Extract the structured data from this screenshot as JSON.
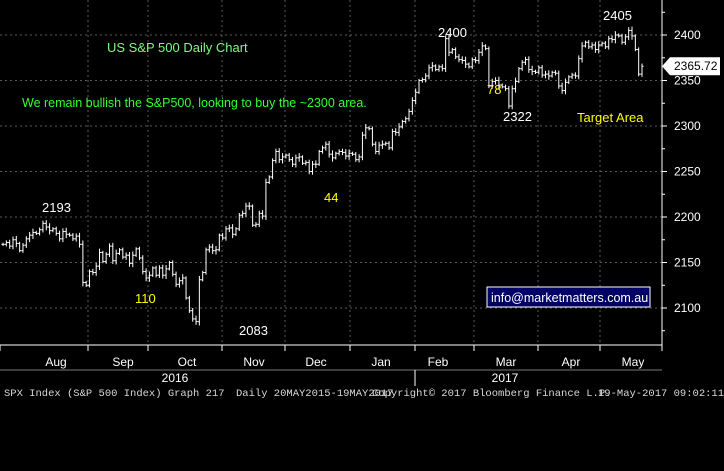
{
  "chart_data": {
    "type": "line",
    "title": "US S&P 500 Daily Chart",
    "subtitle": "We remain bullish the S&P500, looking to buy the ~2300 area.",
    "ylim": [
      2075,
      2425
    ],
    "y_ticks": [
      2100,
      2150,
      2200,
      2250,
      2300,
      2350,
      2400
    ],
    "month_labels": [
      "Aug",
      "Sep",
      "Oct",
      "Nov",
      "Dec",
      "Jan",
      "Feb",
      "Mar",
      "Apr",
      "May"
    ],
    "year_labels": [
      "2016",
      "2017"
    ],
    "last_price": "2365.72",
    "website": "info@marketmatters.com.au",
    "annotations": [
      {
        "text": "2193",
        "color": "#ffffff"
      },
      {
        "text": "110",
        "color": "#ffff00"
      },
      {
        "text": "2083",
        "color": "#ffffff"
      },
      {
        "text": "44",
        "color": "#ffff00"
      },
      {
        "text": "2400",
        "color": "#ffffff"
      },
      {
        "text": "78",
        "color": "#ffff00"
      },
      {
        "text": "2322",
        "color": "#ffffff"
      },
      {
        "text": "2405",
        "color": "#ffffff"
      },
      {
        "text": "Target Area",
        "color": "#ffff00"
      }
    ],
    "series": [
      {
        "values": [
          2170,
          2172,
          2168,
          2175,
          2171,
          2163,
          2169,
          2176,
          2180,
          2183,
          2182,
          2186,
          2193,
          2189,
          2185,
          2187,
          2182,
          2176,
          2184,
          2181,
          2180,
          2176,
          2179,
          2170,
          2128,
          2125,
          2140,
          2139,
          2146,
          2161,
          2151,
          2159,
          2168,
          2152,
          2160,
          2164,
          2156,
          2158,
          2149,
          2158,
          2165,
          2155,
          2140,
          2133,
          2136,
          2144,
          2136,
          2144,
          2136,
          2143,
          2150,
          2137,
          2126,
          2130,
          2133,
          2111,
          2097,
          2088,
          2085,
          2131,
          2139,
          2164,
          2167,
          2163,
          2164,
          2180,
          2177,
          2187,
          2188,
          2181,
          2187,
          2202,
          2204,
          2212,
          2212,
          2191,
          2192,
          2204,
          2201,
          2238,
          2244,
          2262,
          2272,
          2263,
          2266,
          2268,
          2263,
          2258,
          2265,
          2266,
          2259,
          2260,
          2250,
          2258,
          2258,
          2272,
          2276,
          2280,
          2269,
          2265,
          2270,
          2272,
          2271,
          2267,
          2270,
          2269,
          2263,
          2266,
          2290,
          2298,
          2297,
          2280,
          2272,
          2279,
          2280,
          2281,
          2276,
          2294,
          2293,
          2299,
          2305,
          2308,
          2316,
          2328,
          2337,
          2350,
          2351,
          2355,
          2364,
          2366,
          2362,
          2365,
          2363,
          2396,
          2381,
          2384,
          2376,
          2373,
          2372,
          2368,
          2365,
          2373,
          2372,
          2381,
          2388,
          2385,
          2344,
          2349,
          2350,
          2345,
          2343,
          2341,
          2322,
          2341,
          2349,
          2363,
          2370,
          2373,
          2362,
          2360,
          2359,
          2364,
          2356,
          2357,
          2355,
          2359,
          2358,
          2344,
          2339,
          2348,
          2354,
          2356,
          2355,
          2374,
          2388,
          2392,
          2387,
          2389,
          2384,
          2389,
          2391,
          2387,
          2396,
          2395,
          2400,
          2399,
          2392,
          2398,
          2405,
          2399,
          2384,
          2357,
          2365.72
        ]
      }
    ]
  },
  "footer": {
    "left": "SPX Index (S&P 500 Index) Graph 217",
    "middle": "Daily 20MAY2015-19MAY2017",
    "copyright": "Copyright© 2017 Bloomberg Finance L.P.",
    "timestamp": "19-May-2017 09:02:11"
  }
}
